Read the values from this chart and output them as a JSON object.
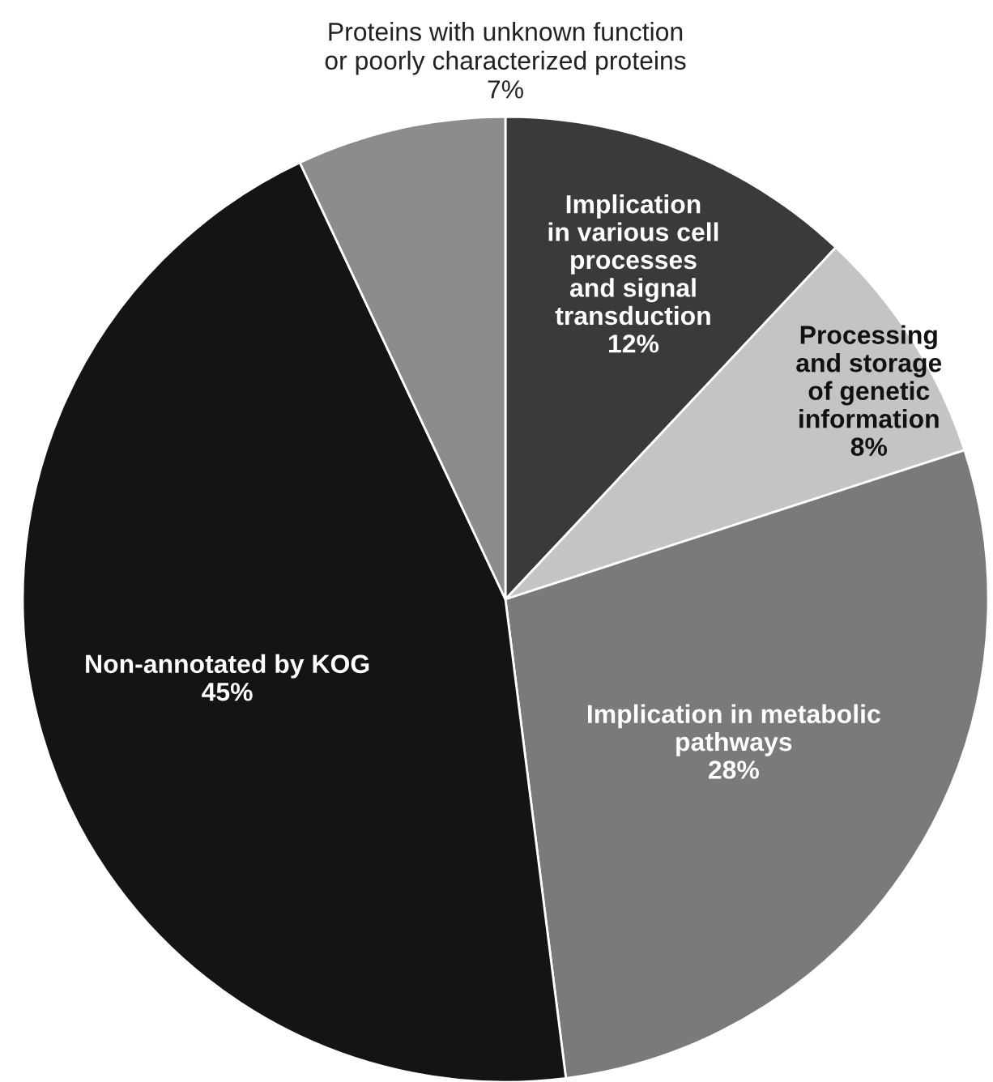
{
  "chart_data": {
    "type": "pie",
    "categories": [
      "Implication\nin various cell\nprocesses\nand signal\ntransduction",
      "Processing\nand storage\nof genetic\ninformation",
      "Implication in metabolic\npathways",
      "Non-annotated by KOG",
      "Proteins with unknown function\nor poorly characterized proteins"
    ],
    "values": [
      12,
      8,
      28,
      45,
      7
    ],
    "value_labels": [
      "12%",
      "8%",
      "28%",
      "45%",
      "7%"
    ],
    "colors": [
      "#3a3a3a",
      "#c4c4c4",
      "#7a7a7a",
      "#141414",
      "#8c8c8c"
    ]
  }
}
